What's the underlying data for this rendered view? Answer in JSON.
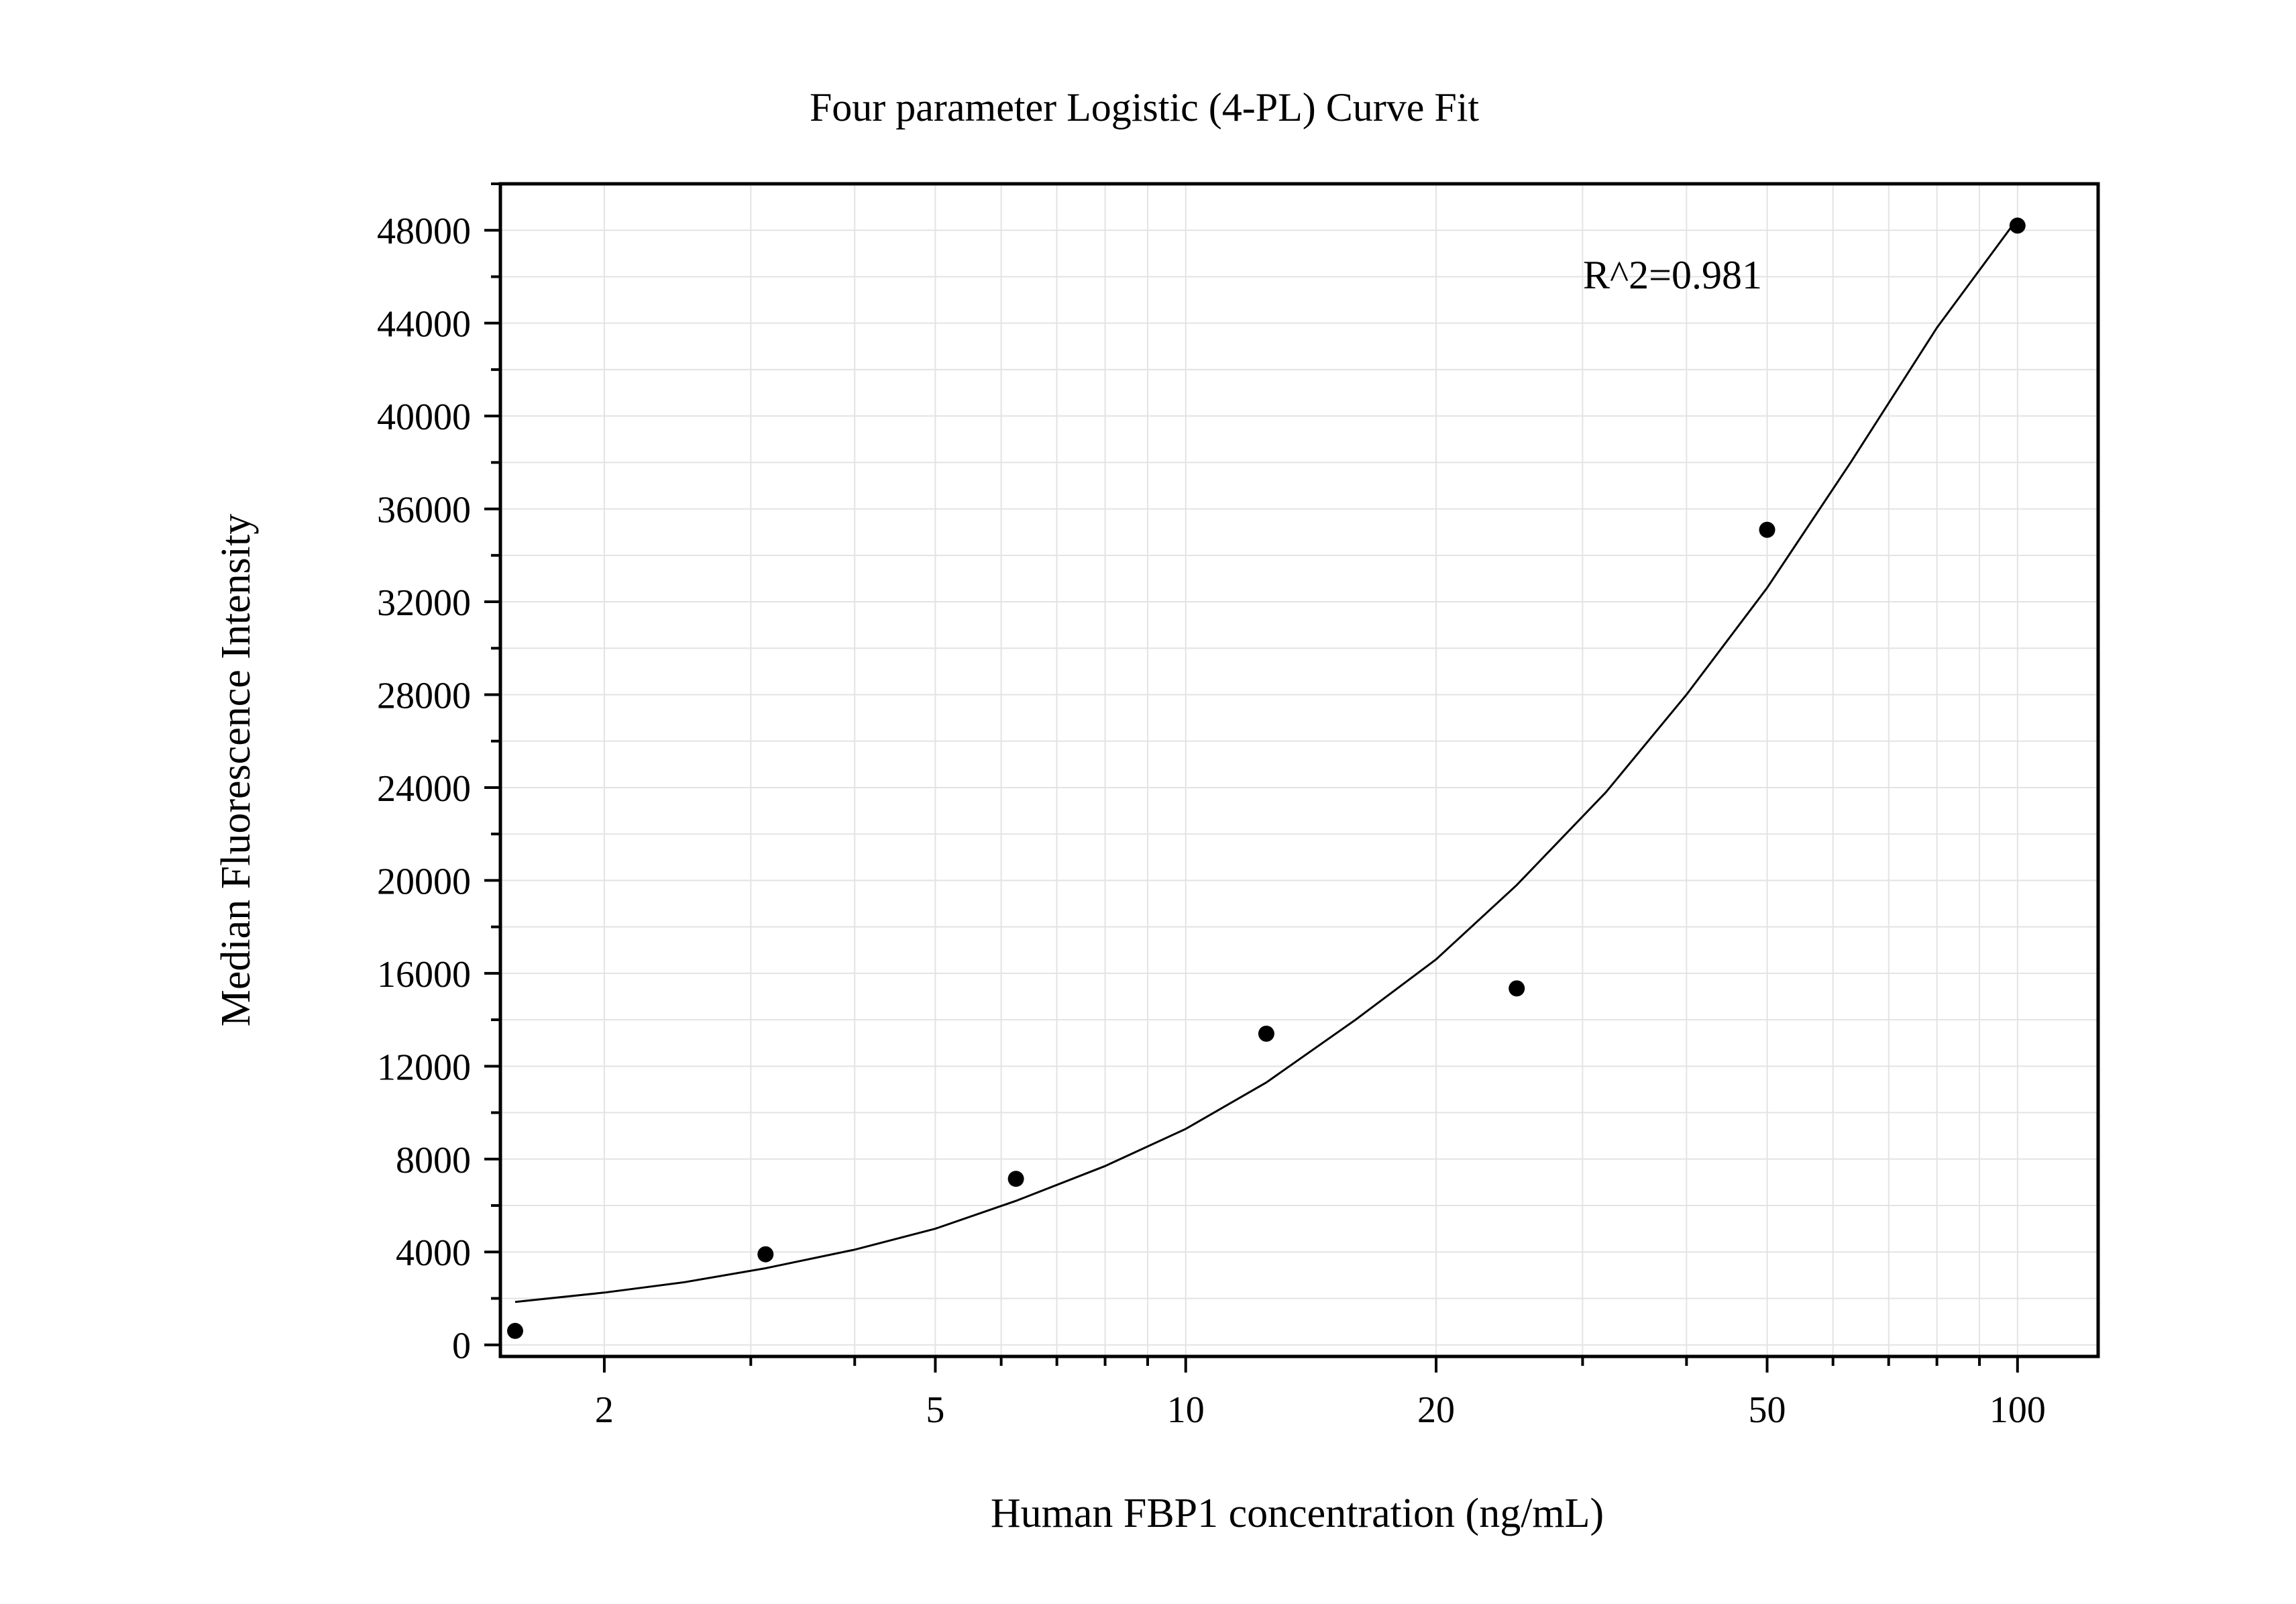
{
  "chart_data": {
    "type": "scatter",
    "title": "Four parameter Logistic (4-PL) Curve Fit",
    "xlabel": "Human FBP1 concentration (ng/mL)",
    "ylabel": "Median Fluorescence Intensity",
    "xscale": "log",
    "xlim": [
      1.5,
      125
    ],
    "ylim": [
      -500,
      50000
    ],
    "xticks": [
      {
        "value": 2,
        "label": "2"
      },
      {
        "value": 5,
        "label": "5"
      },
      {
        "value": 10,
        "label": "10"
      },
      {
        "value": 20,
        "label": "20"
      },
      {
        "value": 50,
        "label": "50"
      },
      {
        "value": 100,
        "label": "100"
      }
    ],
    "yticks": [
      {
        "value": 0,
        "label": "0"
      },
      {
        "value": 4000,
        "label": "4000"
      },
      {
        "value": 8000,
        "label": "8000"
      },
      {
        "value": 12000,
        "label": "12000"
      },
      {
        "value": 16000,
        "label": "16000"
      },
      {
        "value": 20000,
        "label": "20000"
      },
      {
        "value": 24000,
        "label": "24000"
      },
      {
        "value": 28000,
        "label": "28000"
      },
      {
        "value": 32000,
        "label": "32000"
      },
      {
        "value": 36000,
        "label": "36000"
      },
      {
        "value": 40000,
        "label": "40000"
      },
      {
        "value": 44000,
        "label": "44000"
      },
      {
        "value": 48000,
        "label": "48000"
      }
    ],
    "grid": true,
    "annotation": "R^2=0.981",
    "points": [
      {
        "x": 1.5625,
        "y": 600
      },
      {
        "x": 3.125,
        "y": 3900
      },
      {
        "x": 6.25,
        "y": 7150
      },
      {
        "x": 12.5,
        "y": 13400
      },
      {
        "x": 25,
        "y": 15350
      },
      {
        "x": 50,
        "y": 35100
      },
      {
        "x": 100,
        "y": 48200
      }
    ],
    "fit_curve": [
      {
        "x": 1.5625,
        "y": 1850
      },
      {
        "x": 2,
        "y": 2250
      },
      {
        "x": 2.5,
        "y": 2700
      },
      {
        "x": 3.125,
        "y": 3300
      },
      {
        "x": 4,
        "y": 4100
      },
      {
        "x": 5,
        "y": 5000
      },
      {
        "x": 6.25,
        "y": 6200
      },
      {
        "x": 8,
        "y": 7700
      },
      {
        "x": 10,
        "y": 9300
      },
      {
        "x": 12.5,
        "y": 11300
      },
      {
        "x": 16,
        "y": 14000
      },
      {
        "x": 20,
        "y": 16600
      },
      {
        "x": 25,
        "y": 19800
      },
      {
        "x": 32,
        "y": 23800
      },
      {
        "x": 40,
        "y": 28000
      },
      {
        "x": 50,
        "y": 32600
      },
      {
        "x": 63,
        "y": 38000
      },
      {
        "x": 80,
        "y": 43800
      },
      {
        "x": 100,
        "y": 48500
      }
    ],
    "colors": {
      "points": "#000000",
      "curve": "#000000",
      "grid": "#e3e3e3",
      "frame": "#000000"
    }
  }
}
